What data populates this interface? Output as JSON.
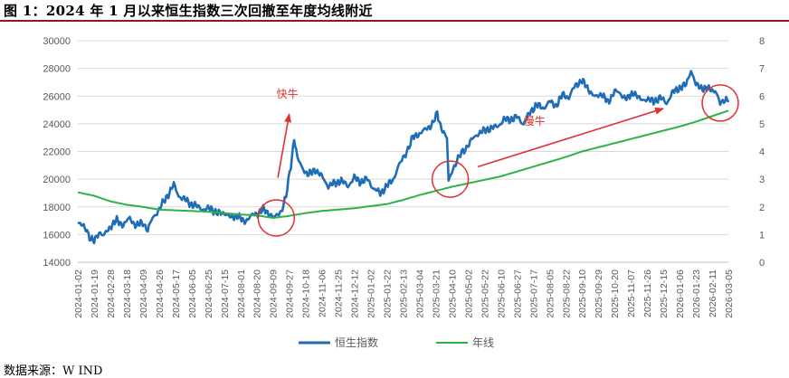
{
  "title": "图 1：2024 年 1 月以来恒生指数三次回撤至年度均线附近",
  "source": "数据来源：W IND",
  "chart_data": {
    "type": "line",
    "y_left_ticks": [
      "30000",
      "28000",
      "26000",
      "24000",
      "22000",
      "20000",
      "18000",
      "16000",
      "14000"
    ],
    "y_right_ticks": [
      "8",
      "7",
      "6",
      "5",
      "4",
      "3",
      "2",
      "1",
      "0"
    ],
    "ylim_left": [
      14000,
      30000
    ],
    "ylim_right": [
      0,
      8
    ],
    "x_tick_labels": [
      "2024-01-02",
      "2024-01-19",
      "2024-02-28",
      "2024-03-18",
      "2024-04-09",
      "2024-04-26",
      "2024-05-17",
      "2024-06-05",
      "2024-06-25",
      "2024-07-15",
      "2024-08-01",
      "2024-08-20",
      "2024-09-09",
      "2024-09-27",
      "2024-10-18",
      "2024-11-06",
      "2024-11-25",
      "2024-12-12",
      "2025-01-02",
      "2025-01-22",
      "2025-02-13",
      "2025-03-04",
      "2025-03-21",
      "2025-04-10",
      "2025-05-02",
      "2025-05-22",
      "2025-06-10",
      "2025-06-27",
      "2025-07-17",
      "2025-08-05",
      "2025-08-22",
      "2025-09-10",
      "2025-09-29",
      "2025-10-20",
      "2025-11-07",
      "2025-11-26",
      "2025-12-15",
      "2026-01-06",
      "2026-01-23",
      "2026-02-11",
      "2026-03-05"
    ],
    "series": [
      {
        "name": "恒生指数",
        "color": "#1f6eb5",
        "axis": "left",
        "anchors": [
          [
            0,
            16800
          ],
          [
            0.5,
            16500
          ],
          [
            0.8,
            15600
          ],
          [
            1.0,
            15500
          ],
          [
            1.3,
            16200
          ],
          [
            1.6,
            15900
          ],
          [
            2.0,
            16600
          ],
          [
            2.4,
            17000
          ],
          [
            2.8,
            16700
          ],
          [
            3.2,
            17200
          ],
          [
            3.6,
            16600
          ],
          [
            4.0,
            16900
          ],
          [
            4.3,
            16300
          ],
          [
            4.6,
            17200
          ],
          [
            5.0,
            17800
          ],
          [
            5.5,
            18800
          ],
          [
            5.9,
            19600
          ],
          [
            6.2,
            18800
          ],
          [
            6.6,
            18500
          ],
          [
            7.0,
            18200
          ],
          [
            7.4,
            18000
          ],
          [
            7.8,
            17800
          ],
          [
            8.2,
            17900
          ],
          [
            8.6,
            17500
          ],
          [
            9.0,
            17600
          ],
          [
            9.4,
            17200
          ],
          [
            9.8,
            17400
          ],
          [
            10.2,
            16900
          ],
          [
            10.6,
            17300
          ],
          [
            11.0,
            17500
          ],
          [
            11.4,
            17800
          ],
          [
            11.8,
            17500
          ],
          [
            12.1,
            17200
          ],
          [
            12.5,
            17700
          ],
          [
            12.8,
            18700
          ],
          [
            13.1,
            21000
          ],
          [
            13.3,
            23000
          ],
          [
            13.5,
            21500
          ],
          [
            13.8,
            20800
          ],
          [
            14.2,
            20300
          ],
          [
            14.6,
            20700
          ],
          [
            15.0,
            20200
          ],
          [
            15.4,
            19500
          ],
          [
            15.8,
            19700
          ],
          [
            16.2,
            19900
          ],
          [
            16.6,
            19500
          ],
          [
            17.0,
            20100
          ],
          [
            17.4,
            19800
          ],
          [
            17.8,
            20000
          ],
          [
            18.2,
            19300
          ],
          [
            18.6,
            19000
          ],
          [
            19.0,
            19500
          ],
          [
            19.4,
            20000
          ],
          [
            19.7,
            20900
          ],
          [
            20.0,
            21500
          ],
          [
            20.3,
            22200
          ],
          [
            20.6,
            23000
          ],
          [
            21.0,
            23300
          ],
          [
            21.4,
            23600
          ],
          [
            21.8,
            24000
          ],
          [
            22.1,
            24700
          ],
          [
            22.3,
            23900
          ],
          [
            22.5,
            23400
          ],
          [
            22.7,
            22900
          ],
          [
            22.8,
            19800
          ],
          [
            23.0,
            20600
          ],
          [
            23.3,
            21300
          ],
          [
            23.6,
            21900
          ],
          [
            23.9,
            22300
          ],
          [
            24.2,
            22800
          ],
          [
            24.6,
            23300
          ],
          [
            25.0,
            23500
          ],
          [
            25.4,
            23700
          ],
          [
            25.8,
            23800
          ],
          [
            26.2,
            24300
          ],
          [
            26.6,
            24300
          ],
          [
            27.0,
            24500
          ],
          [
            27.4,
            24000
          ],
          [
            27.8,
            24800
          ],
          [
            28.2,
            25400
          ],
          [
            28.6,
            25100
          ],
          [
            29.0,
            25600
          ],
          [
            29.4,
            25300
          ],
          [
            29.8,
            26100
          ],
          [
            30.2,
            25900
          ],
          [
            30.6,
            26800
          ],
          [
            31.0,
            27100
          ],
          [
            31.4,
            26500
          ],
          [
            31.8,
            25900
          ],
          [
            32.2,
            26200
          ],
          [
            32.6,
            25500
          ],
          [
            33.0,
            26400
          ],
          [
            33.4,
            26100
          ],
          [
            33.8,
            25800
          ],
          [
            34.2,
            26300
          ],
          [
            34.6,
            25700
          ],
          [
            35.0,
            25800
          ],
          [
            35.4,
            25600
          ],
          [
            35.8,
            25900
          ],
          [
            36.2,
            25500
          ],
          [
            36.6,
            26300
          ],
          [
            37.0,
            26600
          ],
          [
            37.4,
            26800
          ],
          [
            37.7,
            27900
          ],
          [
            38.0,
            26800
          ],
          [
            38.4,
            26600
          ],
          [
            38.8,
            26500
          ],
          [
            39.2,
            26400
          ],
          [
            39.5,
            25400
          ],
          [
            39.8,
            25800
          ],
          [
            40.0,
            25800
          ]
        ]
      },
      {
        "name": "年线",
        "color": "#2bb34a",
        "axis": "left",
        "anchors": [
          [
            0,
            19050
          ],
          [
            1,
            18800
          ],
          [
            2,
            18400
          ],
          [
            3,
            18150
          ],
          [
            4,
            18000
          ],
          [
            5,
            17800
          ],
          [
            6,
            17750
          ],
          [
            7,
            17700
          ],
          [
            8,
            17650
          ],
          [
            9,
            17550
          ],
          [
            10,
            17450
          ],
          [
            11,
            17380
          ],
          [
            12,
            17200
          ],
          [
            13,
            17350
          ],
          [
            14,
            17550
          ],
          [
            15,
            17700
          ],
          [
            16,
            17800
          ],
          [
            17,
            17900
          ],
          [
            18,
            18050
          ],
          [
            19,
            18200
          ],
          [
            20,
            18500
          ],
          [
            21,
            18850
          ],
          [
            22,
            19150
          ],
          [
            23,
            19450
          ],
          [
            24,
            19700
          ],
          [
            25,
            19950
          ],
          [
            26,
            20200
          ],
          [
            27,
            20550
          ],
          [
            28,
            20900
          ],
          [
            29,
            21250
          ],
          [
            30,
            21600
          ],
          [
            31,
            22000
          ],
          [
            32,
            22300
          ],
          [
            33,
            22600
          ],
          [
            34,
            22900
          ],
          [
            35,
            23200
          ],
          [
            36,
            23500
          ],
          [
            37,
            23800
          ],
          [
            38,
            24150
          ],
          [
            39,
            24550
          ],
          [
            40,
            24950
          ]
        ]
      }
    ],
    "annotations": [
      {
        "text": "快牛",
        "from_x": 12.3,
        "from_y": 20100,
        "to_x": 13.0,
        "to_y": 24700
      },
      {
        "text": "慢牛",
        "from_x": 24.6,
        "from_y": 20900,
        "to_x": 36.0,
        "to_y": 25100
      }
    ],
    "circles": [
      {
        "x": 12.2,
        "y": 17200
      },
      {
        "x": 22.9,
        "y": 20000
      },
      {
        "x": 39.5,
        "y": 25500
      }
    ]
  }
}
